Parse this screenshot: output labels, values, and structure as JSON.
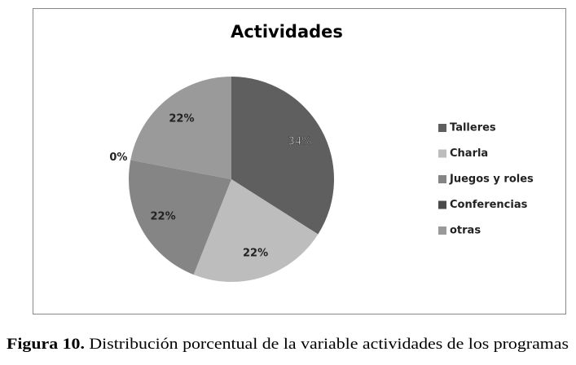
{
  "chart_data": {
    "type": "pie",
    "title": "Actividades",
    "categories": [
      "Talleres",
      "Charla",
      "Juegos y roles",
      "Conferencias",
      "otras"
    ],
    "values": [
      34,
      22,
      22,
      0,
      22
    ],
    "value_labels": [
      "34%",
      "22%",
      "22%",
      "0%",
      "22%"
    ],
    "colors": [
      "#5f5f5f",
      "#bdbdbd",
      "#858585",
      "#4a4a4a",
      "#9a9a9a"
    ],
    "legend": "right"
  },
  "caption": {
    "label": "Figura 10.",
    "text": "Distribución porcentual de la variable actividades de los programas"
  }
}
